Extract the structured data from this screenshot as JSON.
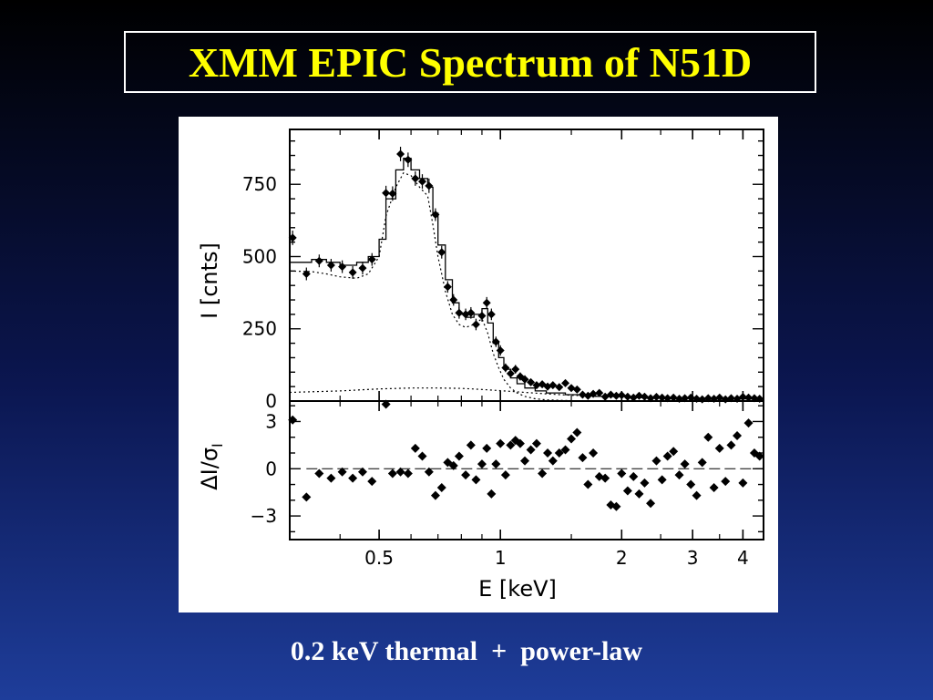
{
  "slide": {
    "title": "XMM EPIC Spectrum of N51D",
    "caption": "0.2 keV thermal  +  power-law"
  },
  "chart_data": {
    "type": "scatter",
    "x_scale": "log",
    "xlim": [
      0.3,
      4.5
    ],
    "x_ticks": [
      {
        "value": 0.5,
        "label": "0.5"
      },
      {
        "value": 1,
        "label": "1"
      },
      {
        "value": 2,
        "label": "2"
      },
      {
        "value": 3,
        "label": "3"
      },
      {
        "value": 4,
        "label": "4"
      }
    ],
    "xlabel": "E [keV]",
    "top_panel": {
      "ylabel": "I [cnts]",
      "ylim": [
        0,
        940
      ],
      "y_ticks": [
        {
          "value": 0,
          "label": "0"
        },
        {
          "value": 250,
          "label": "250"
        },
        {
          "value": 500,
          "label": "500"
        },
        {
          "value": 750,
          "label": "750"
        }
      ],
      "data_points": [
        {
          "x": 0.305,
          "y": 565,
          "err": 25
        },
        {
          "x": 0.33,
          "y": 440,
          "err": 22
        },
        {
          "x": 0.355,
          "y": 485,
          "err": 22
        },
        {
          "x": 0.38,
          "y": 470,
          "err": 22
        },
        {
          "x": 0.405,
          "y": 465,
          "err": 22
        },
        {
          "x": 0.43,
          "y": 445,
          "err": 22
        },
        {
          "x": 0.455,
          "y": 460,
          "err": 22
        },
        {
          "x": 0.48,
          "y": 490,
          "err": 22
        },
        {
          "x": 0.52,
          "y": 720,
          "err": 25
        },
        {
          "x": 0.54,
          "y": 718,
          "err": 25
        },
        {
          "x": 0.565,
          "y": 855,
          "err": 25
        },
        {
          "x": 0.59,
          "y": 835,
          "err": 25
        },
        {
          "x": 0.615,
          "y": 770,
          "err": 25
        },
        {
          "x": 0.64,
          "y": 760,
          "err": 25
        },
        {
          "x": 0.665,
          "y": 745,
          "err": 25
        },
        {
          "x": 0.69,
          "y": 645,
          "err": 22
        },
        {
          "x": 0.715,
          "y": 515,
          "err": 22
        },
        {
          "x": 0.74,
          "y": 395,
          "err": 20
        },
        {
          "x": 0.765,
          "y": 350,
          "err": 20
        },
        {
          "x": 0.79,
          "y": 305,
          "err": 20
        },
        {
          "x": 0.82,
          "y": 300,
          "err": 20
        },
        {
          "x": 0.845,
          "y": 305,
          "err": 20
        },
        {
          "x": 0.87,
          "y": 265,
          "err": 20
        },
        {
          "x": 0.9,
          "y": 295,
          "err": 20
        },
        {
          "x": 0.925,
          "y": 340,
          "err": 20
        },
        {
          "x": 0.95,
          "y": 300,
          "err": 20
        },
        {
          "x": 0.975,
          "y": 205,
          "err": 18
        },
        {
          "x": 1.0,
          "y": 175,
          "err": 18
        },
        {
          "x": 1.03,
          "y": 115,
          "err": 15
        },
        {
          "x": 1.06,
          "y": 95,
          "err": 15
        },
        {
          "x": 1.09,
          "y": 110,
          "err": 15
        },
        {
          "x": 1.12,
          "y": 85,
          "err": 14
        },
        {
          "x": 1.15,
          "y": 75,
          "err": 14
        },
        {
          "x": 1.19,
          "y": 65,
          "err": 12
        },
        {
          "x": 1.23,
          "y": 55,
          "err": 12
        },
        {
          "x": 1.27,
          "y": 58,
          "err": 12
        },
        {
          "x": 1.31,
          "y": 50,
          "err": 12
        },
        {
          "x": 1.35,
          "y": 55,
          "err": 12
        },
        {
          "x": 1.4,
          "y": 48,
          "err": 10
        },
        {
          "x": 1.45,
          "y": 62,
          "err": 10
        },
        {
          "x": 1.5,
          "y": 45,
          "err": 10
        },
        {
          "x": 1.55,
          "y": 40,
          "err": 10
        },
        {
          "x": 1.6,
          "y": 22,
          "err": 10
        },
        {
          "x": 1.65,
          "y": 18,
          "err": 8
        },
        {
          "x": 1.7,
          "y": 25,
          "err": 8
        },
        {
          "x": 1.76,
          "y": 28,
          "err": 8
        },
        {
          "x": 1.82,
          "y": 15,
          "err": 8
        },
        {
          "x": 1.88,
          "y": 22,
          "err": 8
        },
        {
          "x": 1.94,
          "y": 18,
          "err": 8
        },
        {
          "x": 2.0,
          "y": 20,
          "err": 8
        },
        {
          "x": 2.07,
          "y": 15,
          "err": 8
        },
        {
          "x": 2.14,
          "y": 12,
          "err": 7
        },
        {
          "x": 2.21,
          "y": 18,
          "err": 7
        },
        {
          "x": 2.28,
          "y": 15,
          "err": 7
        },
        {
          "x": 2.36,
          "y": 10,
          "err": 7
        },
        {
          "x": 2.44,
          "y": 14,
          "err": 7
        },
        {
          "x": 2.52,
          "y": 12,
          "err": 7
        },
        {
          "x": 2.6,
          "y": 10,
          "err": 7
        },
        {
          "x": 2.69,
          "y": 12,
          "err": 7
        },
        {
          "x": 2.78,
          "y": 8,
          "err": 6
        },
        {
          "x": 2.87,
          "y": 10,
          "err": 6
        },
        {
          "x": 2.97,
          "y": 12,
          "err": 6
        },
        {
          "x": 3.07,
          "y": 8,
          "err": 6
        },
        {
          "x": 3.17,
          "y": 6,
          "err": 6
        },
        {
          "x": 3.28,
          "y": 10,
          "err": 6
        },
        {
          "x": 3.39,
          "y": 8,
          "err": 6
        },
        {
          "x": 3.5,
          "y": 12,
          "err": 6
        },
        {
          "x": 3.62,
          "y": 6,
          "err": 6
        },
        {
          "x": 3.74,
          "y": 10,
          "err": 6
        },
        {
          "x": 3.87,
          "y": 8,
          "err": 6
        },
        {
          "x": 4.0,
          "y": 14,
          "err": 6
        },
        {
          "x": 4.13,
          "y": 12,
          "err": 6
        },
        {
          "x": 4.27,
          "y": 10,
          "err": 6
        },
        {
          "x": 4.4,
          "y": 8,
          "err": 6
        }
      ],
      "model_total": [
        [
          0.3,
          480
        ],
        [
          0.34,
          480
        ],
        [
          0.34,
          490
        ],
        [
          0.37,
          490
        ],
        [
          0.37,
          480
        ],
        [
          0.4,
          480
        ],
        [
          0.4,
          470
        ],
        [
          0.44,
          470
        ],
        [
          0.44,
          480
        ],
        [
          0.47,
          480
        ],
        [
          0.47,
          500
        ],
        [
          0.5,
          500
        ],
        [
          0.5,
          560
        ],
        [
          0.52,
          560
        ],
        [
          0.52,
          700
        ],
        [
          0.55,
          700
        ],
        [
          0.55,
          800
        ],
        [
          0.575,
          800
        ],
        [
          0.575,
          840
        ],
        [
          0.6,
          840
        ],
        [
          0.6,
          800
        ],
        [
          0.63,
          800
        ],
        [
          0.63,
          770
        ],
        [
          0.66,
          770
        ],
        [
          0.66,
          740
        ],
        [
          0.68,
          740
        ],
        [
          0.68,
          650
        ],
        [
          0.7,
          650
        ],
        [
          0.7,
          540
        ],
        [
          0.73,
          540
        ],
        [
          0.73,
          420
        ],
        [
          0.76,
          420
        ],
        [
          0.76,
          340
        ],
        [
          0.79,
          340
        ],
        [
          0.79,
          300
        ],
        [
          0.82,
          300
        ],
        [
          0.82,
          290
        ],
        [
          0.86,
          290
        ],
        [
          0.86,
          300
        ],
        [
          0.9,
          300
        ],
        [
          0.9,
          320
        ],
        [
          0.93,
          320
        ],
        [
          0.93,
          270
        ],
        [
          0.96,
          270
        ],
        [
          0.96,
          200
        ],
        [
          0.99,
          200
        ],
        [
          0.99,
          150
        ],
        [
          1.02,
          150
        ],
        [
          1.02,
          110
        ],
        [
          1.06,
          110
        ],
        [
          1.06,
          80
        ],
        [
          1.1,
          80
        ],
        [
          1.1,
          60
        ],
        [
          1.15,
          60
        ],
        [
          1.15,
          45
        ],
        [
          1.22,
          45
        ],
        [
          1.22,
          35
        ],
        [
          1.3,
          35
        ],
        [
          1.3,
          28
        ],
        [
          1.45,
          28
        ],
        [
          1.45,
          22
        ],
        [
          1.7,
          22
        ],
        [
          1.7,
          16
        ],
        [
          2.1,
          16
        ],
        [
          2.1,
          12
        ],
        [
          2.8,
          12
        ],
        [
          2.8,
          10
        ],
        [
          3.6,
          10
        ],
        [
          3.6,
          8
        ],
        [
          4.5,
          8
        ]
      ],
      "model_thermal": [
        [
          0.3,
          450
        ],
        [
          0.34,
          448
        ],
        [
          0.37,
          440
        ],
        [
          0.4,
          430
        ],
        [
          0.44,
          425
        ],
        [
          0.47,
          440
        ],
        [
          0.5,
          500
        ],
        [
          0.52,
          640
        ],
        [
          0.55,
          740
        ],
        [
          0.575,
          790
        ],
        [
          0.6,
          780
        ],
        [
          0.63,
          740
        ],
        [
          0.66,
          710
        ],
        [
          0.68,
          610
        ],
        [
          0.7,
          500
        ],
        [
          0.73,
          380
        ],
        [
          0.76,
          300
        ],
        [
          0.79,
          265
        ],
        [
          0.82,
          255
        ],
        [
          0.86,
          265
        ],
        [
          0.9,
          285
        ],
        [
          0.93,
          235
        ],
        [
          0.96,
          165
        ],
        [
          0.99,
          115
        ],
        [
          1.02,
          75
        ],
        [
          1.06,
          45
        ],
        [
          1.1,
          28
        ],
        [
          1.15,
          16
        ],
        [
          1.22,
          8
        ],
        [
          1.3,
          4
        ],
        [
          1.45,
          2
        ],
        [
          1.7,
          0
        ],
        [
          4.5,
          0
        ]
      ],
      "model_powerlaw": [
        [
          0.3,
          30
        ],
        [
          0.4,
          35
        ],
        [
          0.5,
          42
        ],
        [
          0.6,
          45
        ],
        [
          0.7,
          45
        ],
        [
          0.8,
          44
        ],
        [
          0.9,
          40
        ],
        [
          1.0,
          36
        ],
        [
          1.15,
          30
        ],
        [
          1.3,
          25
        ],
        [
          1.5,
          20
        ],
        [
          1.8,
          16
        ],
        [
          2.2,
          13
        ],
        [
          2.8,
          10
        ],
        [
          3.5,
          8
        ],
        [
          4.5,
          7
        ]
      ]
    },
    "bottom_panel": {
      "ylabel": "ΔI/σ",
      "ylabel_subscript": "I",
      "ylim": [
        -4.5,
        4.3
      ],
      "y_ticks": [
        {
          "value": 3,
          "label": "3"
        },
        {
          "value": 0,
          "label": "0"
        },
        {
          "value": -3,
          "label": "−3"
        }
      ],
      "zero_line": 0,
      "residuals": [
        {
          "x": 0.305,
          "y": 3.1
        },
        {
          "x": 0.33,
          "y": -1.8
        },
        {
          "x": 0.355,
          "y": -0.3
        },
        {
          "x": 0.38,
          "y": -0.6
        },
        {
          "x": 0.405,
          "y": -0.2
        },
        {
          "x": 0.43,
          "y": -0.6
        },
        {
          "x": 0.455,
          "y": -0.2
        },
        {
          "x": 0.48,
          "y": -0.8
        },
        {
          "x": 0.52,
          "y": 4.1
        },
        {
          "x": 0.54,
          "y": -0.3
        },
        {
          "x": 0.565,
          "y": -0.2
        },
        {
          "x": 0.59,
          "y": -0.3
        },
        {
          "x": 0.615,
          "y": 1.3
        },
        {
          "x": 0.64,
          "y": 0.8
        },
        {
          "x": 0.665,
          "y": -0.2
        },
        {
          "x": 0.69,
          "y": -1.7
        },
        {
          "x": 0.715,
          "y": -1.2
        },
        {
          "x": 0.74,
          "y": 0.4
        },
        {
          "x": 0.765,
          "y": 0.2
        },
        {
          "x": 0.79,
          "y": 0.8
        },
        {
          "x": 0.82,
          "y": -0.4
        },
        {
          "x": 0.845,
          "y": 1.5
        },
        {
          "x": 0.87,
          "y": -0.7
        },
        {
          "x": 0.9,
          "y": 0.3
        },
        {
          "x": 0.925,
          "y": 1.3
        },
        {
          "x": 0.95,
          "y": -1.6
        },
        {
          "x": 0.975,
          "y": 0.3
        },
        {
          "x": 1.0,
          "y": 1.6
        },
        {
          "x": 1.03,
          "y": -0.4
        },
        {
          "x": 1.06,
          "y": 1.5
        },
        {
          "x": 1.09,
          "y": 1.8
        },
        {
          "x": 1.12,
          "y": 1.6
        },
        {
          "x": 1.15,
          "y": 0.5
        },
        {
          "x": 1.19,
          "y": 1.2
        },
        {
          "x": 1.23,
          "y": 1.6
        },
        {
          "x": 1.27,
          "y": -0.3
        },
        {
          "x": 1.31,
          "y": 1.0
        },
        {
          "x": 1.35,
          "y": 0.5
        },
        {
          "x": 1.4,
          "y": 1.0
        },
        {
          "x": 1.45,
          "y": 1.2
        },
        {
          "x": 1.5,
          "y": 1.9
        },
        {
          "x": 1.55,
          "y": 2.3
        },
        {
          "x": 1.6,
          "y": 0.7
        },
        {
          "x": 1.65,
          "y": -1.0
        },
        {
          "x": 1.7,
          "y": 1.0
        },
        {
          "x": 1.76,
          "y": -0.5
        },
        {
          "x": 1.82,
          "y": -0.6
        },
        {
          "x": 1.88,
          "y": -2.3
        },
        {
          "x": 1.94,
          "y": -2.4
        },
        {
          "x": 2.0,
          "y": -0.3
        },
        {
          "x": 2.07,
          "y": -1.4
        },
        {
          "x": 2.14,
          "y": -0.5
        },
        {
          "x": 2.21,
          "y": -1.6
        },
        {
          "x": 2.28,
          "y": -0.9
        },
        {
          "x": 2.36,
          "y": -2.2
        },
        {
          "x": 2.44,
          "y": 0.5
        },
        {
          "x": 2.52,
          "y": -0.7
        },
        {
          "x": 2.6,
          "y": 0.8
        },
        {
          "x": 2.69,
          "y": 1.1
        },
        {
          "x": 2.78,
          "y": -0.4
        },
        {
          "x": 2.87,
          "y": 0.3
        },
        {
          "x": 2.97,
          "y": -1.0
        },
        {
          "x": 3.07,
          "y": -1.7
        },
        {
          "x": 3.17,
          "y": 0.4
        },
        {
          "x": 3.28,
          "y": 2.0
        },
        {
          "x": 3.39,
          "y": -1.2
        },
        {
          "x": 3.5,
          "y": 1.3
        },
        {
          "x": 3.62,
          "y": -0.8
        },
        {
          "x": 3.74,
          "y": 1.5
        },
        {
          "x": 3.87,
          "y": 2.1
        },
        {
          "x": 4.0,
          "y": -0.9
        },
        {
          "x": 4.13,
          "y": 2.9
        },
        {
          "x": 4.27,
          "y": 1.0
        },
        {
          "x": 4.4,
          "y": 0.8
        }
      ]
    }
  }
}
